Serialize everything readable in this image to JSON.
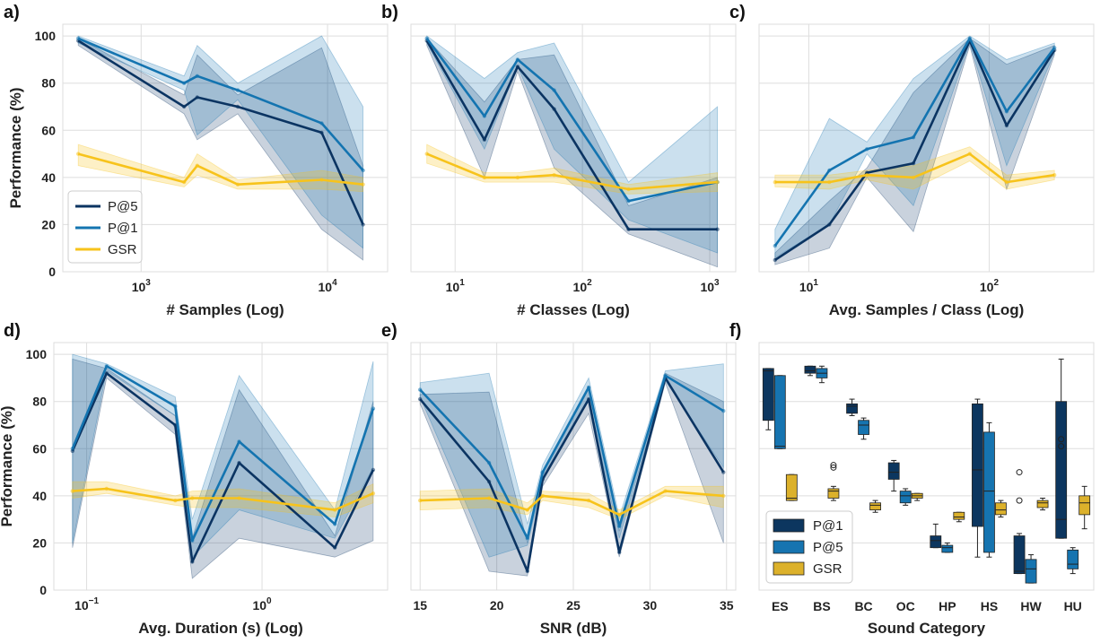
{
  "colors": {
    "p5": "#0b3462",
    "p1": "#1474b0",
    "gsr": "#f7c31b",
    "box_p1": "#0c365f",
    "box_p5": "#1674b0",
    "box_gsr": "#dcb12b",
    "grid": "#dedede",
    "plot_bg": "#ffffff",
    "frame": "#dcdcdc"
  },
  "shared": {
    "ylabel": "Performance (%)",
    "yticks": [
      "0",
      "20",
      "40",
      "60",
      "80",
      "100"
    ]
  },
  "chart_data": [
    {
      "id": "a",
      "panel_label": "a)",
      "type": "line",
      "xscale": "log",
      "xlabel": "# Samples (Log)",
      "xlim": [
        380,
        21000
      ],
      "ylim": [
        0,
        105
      ],
      "xticks": [
        {
          "v": 1000,
          "t": "10",
          "sup": "3"
        },
        {
          "v": 10000,
          "t": "10",
          "sup": "4"
        }
      ],
      "show_yticks": true,
      "show_ylabel": true,
      "legend": {
        "entries": [
          {
            "key": "p5",
            "label": "P@5"
          },
          {
            "key": "p1",
            "label": "P@1"
          },
          {
            "key": "gsr",
            "label": "GSR"
          }
        ],
        "loc": "lower-left"
      },
      "series": [
        {
          "key": "p5",
          "name": "P@5",
          "x": [
            460,
            1700,
            2000,
            3300,
            9300,
            15500
          ],
          "y": [
            98,
            70,
            74,
            70,
            59,
            20
          ],
          "lo": [
            96,
            67,
            56,
            67,
            18,
            5
          ],
          "hi": [
            99,
            75,
            92,
            75,
            95,
            45
          ]
        },
        {
          "key": "p1",
          "name": "P@1",
          "x": [
            460,
            1700,
            2000,
            3300,
            9300,
            15500
          ],
          "y": [
            99,
            80,
            83,
            77,
            63,
            43
          ],
          "lo": [
            97,
            77,
            58,
            73,
            24,
            10
          ],
          "hi": [
            100,
            83,
            96,
            80,
            100,
            70
          ]
        },
        {
          "key": "gsr",
          "name": "GSR",
          "x": [
            460,
            1700,
            2000,
            3300,
            9300,
            15500
          ],
          "y": [
            50,
            38,
            45,
            37,
            39,
            37
          ],
          "lo": [
            45,
            36,
            41,
            35,
            35,
            34
          ],
          "hi": [
            54,
            40,
            50,
            39,
            43,
            40
          ]
        }
      ]
    },
    {
      "id": "b",
      "panel_label": "b)",
      "type": "line",
      "xscale": "log",
      "xlabel": "# Classes (Log)",
      "xlim": [
        4.5,
        1600
      ],
      "ylim": [
        0,
        105
      ],
      "xticks": [
        {
          "v": 10,
          "t": "10",
          "sup": "1"
        },
        {
          "v": 100,
          "t": "10",
          "sup": "2"
        },
        {
          "v": 1000,
          "t": "10",
          "sup": "3"
        }
      ],
      "show_yticks": false,
      "show_ylabel": false,
      "series": [
        {
          "key": "p5",
          "name": "P@5",
          "x": [
            6,
            17,
            31,
            60,
            230,
            1150
          ],
          "y": [
            98,
            56,
            87,
            69,
            18,
            18
          ],
          "lo": [
            96,
            40,
            85,
            44,
            16,
            2
          ],
          "hi": [
            99,
            72,
            90,
            92,
            28,
            40
          ]
        },
        {
          "key": "p1",
          "name": "P@1",
          "x": [
            6,
            17,
            31,
            60,
            230,
            1150
          ],
          "y": [
            99,
            66,
            90,
            77,
            30,
            38
          ],
          "lo": [
            97,
            52,
            87,
            52,
            22,
            8
          ],
          "hi": [
            100,
            82,
            93,
            97,
            38,
            70
          ]
        },
        {
          "key": "gsr",
          "name": "GSR",
          "x": [
            6,
            17,
            31,
            60,
            230,
            1150
          ],
          "y": [
            50,
            40,
            40,
            41,
            35,
            38
          ],
          "lo": [
            46,
            38,
            38,
            38,
            33,
            34
          ],
          "hi": [
            54,
            42,
            42,
            44,
            37,
            42
          ]
        }
      ]
    },
    {
      "id": "c",
      "panel_label": "c)",
      "type": "line",
      "xscale": "log",
      "xlabel": "Avg. Samples / Class (Log)",
      "xlim": [
        5.3,
        380
      ],
      "ylim": [
        0,
        105
      ],
      "xticks": [
        {
          "v": 10,
          "t": "10",
          "sup": "1"
        },
        {
          "v": 100,
          "t": "10",
          "sup": "2"
        }
      ],
      "show_yticks": false,
      "show_ylabel": false,
      "series": [
        {
          "key": "p5",
          "name": "P@5",
          "x": [
            6.5,
            13,
            21,
            38,
            78,
            125,
            230
          ],
          "y": [
            5,
            20,
            42,
            46,
            98,
            62,
            94
          ],
          "lo": [
            3,
            10,
            40,
            17,
            96,
            35,
            92
          ],
          "hi": [
            8,
            30,
            44,
            76,
            99,
            88,
            96
          ]
        },
        {
          "key": "p1",
          "name": "P@1",
          "x": [
            6.5,
            13,
            21,
            38,
            78,
            125,
            230
          ],
          "y": [
            11,
            43,
            52,
            57,
            99,
            68,
            95
          ],
          "lo": [
            6,
            20,
            50,
            28,
            97,
            45,
            93
          ],
          "hi": [
            18,
            65,
            55,
            82,
            100,
            90,
            97
          ]
        },
        {
          "key": "gsr",
          "name": "GSR",
          "x": [
            6.5,
            13,
            21,
            38,
            78,
            125,
            230
          ],
          "y": [
            38,
            38,
            41,
            40,
            50,
            38,
            41
          ],
          "lo": [
            36,
            35,
            39,
            35,
            47,
            35,
            39
          ],
          "hi": [
            41,
            41,
            43,
            45,
            53,
            41,
            43
          ]
        }
      ]
    },
    {
      "id": "d",
      "panel_label": "d)",
      "type": "line",
      "xscale": "log",
      "xlabel": "Avg. Duration (s) (Log)",
      "xlim": [
        0.065,
        5.2
      ],
      "ylim": [
        0,
        105
      ],
      "xticks": [
        {
          "v": 0.1,
          "t": "10",
          "sup": "−1"
        },
        {
          "v": 1,
          "t": "10",
          "sup": "0"
        }
      ],
      "show_yticks": true,
      "show_ylabel": true,
      "series": [
        {
          "key": "p5",
          "name": "P@5",
          "x": [
            0.083,
            0.13,
            0.32,
            0.4,
            0.74,
            2.6,
            4.3
          ],
          "y": [
            59,
            92,
            70,
            12,
            54,
            18,
            51
          ],
          "lo": [
            18,
            90,
            66,
            5,
            22,
            14,
            21
          ],
          "hi": [
            98,
            94,
            74,
            22,
            85,
            23,
            80
          ]
        },
        {
          "key": "p1",
          "name": "P@1",
          "x": [
            0.083,
            0.13,
            0.32,
            0.4,
            0.74,
            2.6,
            4.3
          ],
          "y": [
            60,
            95,
            78,
            21,
            63,
            28,
            77
          ],
          "lo": [
            20,
            93,
            74,
            14,
            34,
            22,
            52
          ],
          "hi": [
            100,
            96,
            82,
            30,
            91,
            34,
            97
          ]
        },
        {
          "key": "gsr",
          "name": "GSR",
          "x": [
            0.083,
            0.13,
            0.32,
            0.4,
            0.74,
            2.6,
            4.3
          ],
          "y": [
            42,
            43,
            38,
            39,
            39,
            34,
            41
          ],
          "lo": [
            39,
            41,
            36,
            35,
            35,
            31,
            37
          ],
          "hi": [
            46,
            46,
            40,
            42,
            43,
            37,
            45
          ]
        }
      ]
    },
    {
      "id": "e",
      "panel_label": "e)",
      "type": "line",
      "xscale": "linear",
      "xlabel": "SNR (dB)",
      "xlim": [
        14.4,
        35.6
      ],
      "ylim": [
        0,
        105
      ],
      "xticks": [
        {
          "v": 15,
          "t": "15"
        },
        {
          "v": 20,
          "t": "20"
        },
        {
          "v": 25,
          "t": "25"
        },
        {
          "v": 30,
          "t": "30"
        },
        {
          "v": 35,
          "t": "35"
        }
      ],
      "show_yticks": false,
      "show_ylabel": false,
      "series": [
        {
          "key": "p5",
          "name": "P@5",
          "x": [
            15,
            19.5,
            22,
            23,
            26,
            28,
            31,
            34.8
          ],
          "y": [
            81,
            46,
            8,
            47,
            81,
            16,
            90,
            50
          ],
          "lo": [
            79,
            8,
            6,
            44,
            75,
            14,
            88,
            20
          ],
          "hi": [
            83,
            84,
            20,
            50,
            86,
            25,
            92,
            80
          ]
        },
        {
          "key": "p1",
          "name": "P@1",
          "x": [
            15,
            19.5,
            22,
            23,
            26,
            28,
            31,
            34.8
          ],
          "y": [
            85,
            54,
            22,
            50,
            86,
            27,
            91,
            76
          ],
          "lo": [
            82,
            14,
            19,
            47,
            81,
            22,
            89,
            52
          ],
          "hi": [
            88,
            92,
            28,
            53,
            90,
            31,
            93,
            96
          ]
        },
        {
          "key": "gsr",
          "name": "GSR",
          "x": [
            15,
            19.5,
            22,
            23,
            26,
            28,
            31,
            34.8
          ],
          "y": [
            38,
            39,
            34,
            40,
            38,
            32,
            42,
            40
          ],
          "lo": [
            34,
            35,
            32,
            38,
            35,
            30,
            40,
            35
          ],
          "hi": [
            42,
            43,
            37,
            42,
            41,
            34,
            44,
            44
          ]
        }
      ]
    },
    {
      "id": "f",
      "panel_label": "f)",
      "type": "box",
      "xlabel": "Sound Category",
      "ylim": [
        0,
        105
      ],
      "categories": [
        "ES",
        "BS",
        "BC",
        "OC",
        "HP",
        "HS",
        "HW",
        "HU"
      ],
      "show_yticks": false,
      "show_ylabel": false,
      "legend": {
        "entries": [
          {
            "key": "box_p1",
            "label": "P@1"
          },
          {
            "key": "box_p5",
            "label": "P@5"
          },
          {
            "key": "box_gsr",
            "label": "GSR"
          }
        ],
        "loc": "lower-left"
      },
      "series": [
        {
          "key": "box_p1",
          "name": "P@1",
          "boxes": [
            {
              "min": 68,
              "q1": 72,
              "med": 93,
              "q3": 94,
              "max": 94,
              "fliers": []
            },
            {
              "min": 91,
              "q1": 92,
              "med": 93,
              "q3": 95,
              "max": 95,
              "fliers": []
            },
            {
              "min": 74,
              "q1": 75,
              "med": 78,
              "q3": 79,
              "max": 81,
              "fliers": []
            },
            {
              "min": 42,
              "q1": 47,
              "med": 50,
              "q3": 54,
              "max": 55,
              "fliers": []
            },
            {
              "min": 18,
              "q1": 18,
              "med": 21,
              "q3": 23,
              "max": 28,
              "fliers": []
            },
            {
              "min": 14,
              "q1": 27,
              "med": 51,
              "q3": 79,
              "max": 81,
              "fliers": []
            },
            {
              "min": 7,
              "q1": 7,
              "med": 8,
              "q3": 23,
              "max": 24,
              "fliers": [
                50,
                38
              ]
            },
            {
              "min": 22,
              "q1": 22,
              "med": 30,
              "q3": 80,
              "max": 98,
              "fliers": [
                64,
                61
              ]
            }
          ]
        },
        {
          "key": "box_p5",
          "name": "P@5",
          "boxes": [
            {
              "min": 60,
              "q1": 60,
              "med": 61,
              "q3": 91,
              "max": 91,
              "fliers": []
            },
            {
              "min": 88,
              "q1": 90,
              "med": 92,
              "q3": 94,
              "max": 95,
              "fliers": []
            },
            {
              "min": 64,
              "q1": 66,
              "med": 70,
              "q3": 72,
              "max": 73,
              "fliers": []
            },
            {
              "min": 36,
              "q1": 37,
              "med": 40,
              "q3": 42,
              "max": 43,
              "fliers": []
            },
            {
              "min": 16,
              "q1": 16,
              "med": 18,
              "q3": 19,
              "max": 20,
              "fliers": []
            },
            {
              "min": 14,
              "q1": 16,
              "med": 42,
              "q3": 67,
              "max": 71,
              "fliers": []
            },
            {
              "min": 3,
              "q1": 3,
              "med": 9,
              "q3": 13,
              "max": 15,
              "fliers": []
            },
            {
              "min": 7,
              "q1": 9,
              "med": 11,
              "q3": 17,
              "max": 18,
              "fliers": []
            }
          ]
        },
        {
          "key": "box_gsr",
          "name": "GSR",
          "boxes": [
            {
              "min": 38,
              "q1": 38,
              "med": 39,
              "q3": 49,
              "max": 49,
              "fliers": []
            },
            {
              "min": 38,
              "q1": 39,
              "med": 42,
              "q3": 43,
              "max": 44,
              "fliers": [
                53,
                52
              ]
            },
            {
              "min": 33,
              "q1": 34,
              "med": 36,
              "q3": 37,
              "max": 38,
              "fliers": []
            },
            {
              "min": 38,
              "q1": 39,
              "med": 40,
              "q3": 41,
              "max": 41,
              "fliers": []
            },
            {
              "min": 29,
              "q1": 30,
              "med": 31,
              "q3": 33,
              "max": 33,
              "fliers": []
            },
            {
              "min": 31,
              "q1": 32,
              "med": 34,
              "q3": 37,
              "max": 38,
              "fliers": []
            },
            {
              "min": 34,
              "q1": 35,
              "med": 37,
              "q3": 38,
              "max": 39,
              "fliers": []
            },
            {
              "min": 26,
              "q1": 32,
              "med": 37,
              "q3": 40,
              "max": 44,
              "fliers": []
            }
          ]
        }
      ]
    }
  ]
}
